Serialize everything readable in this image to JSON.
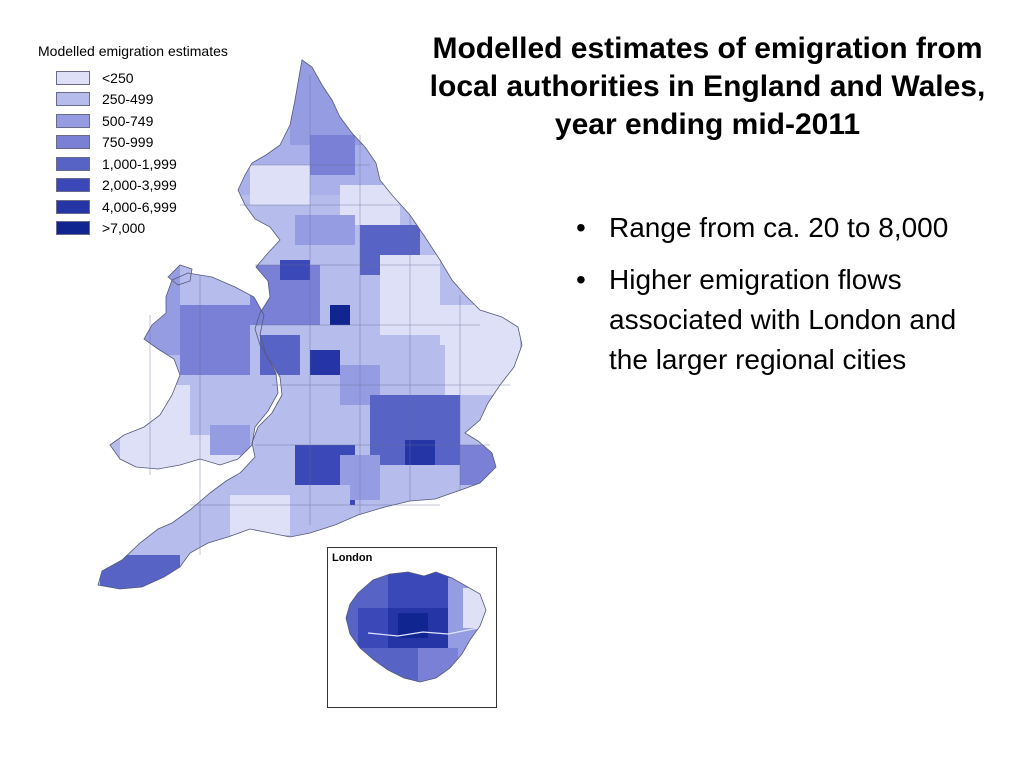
{
  "legend": {
    "title": "Modelled emigration estimates",
    "items": [
      {
        "label": "<250",
        "color": "#dde0f7"
      },
      {
        "label": "250-499",
        "color": "#b6bcec"
      },
      {
        "label": "500-749",
        "color": "#959ce2"
      },
      {
        "label": "750-999",
        "color": "#7980d6"
      },
      {
        "label": "1,000-1,999",
        "color": "#5863c6"
      },
      {
        "label": "2,000-3,999",
        "color": "#3b48b8"
      },
      {
        "label": "4,000-6,999",
        "color": "#2535a6"
      },
      {
        "label": ">7,000",
        "color": "#102590"
      }
    ]
  },
  "inset": {
    "label": "London"
  },
  "title": "Modelled estimates of emigration from local authorities in England and Wales, year ending mid-2011",
  "bullets": [
    "Range from ca. 20 to 8,000",
    "Higher emigration flows associated with London and the larger regional cities"
  ]
}
